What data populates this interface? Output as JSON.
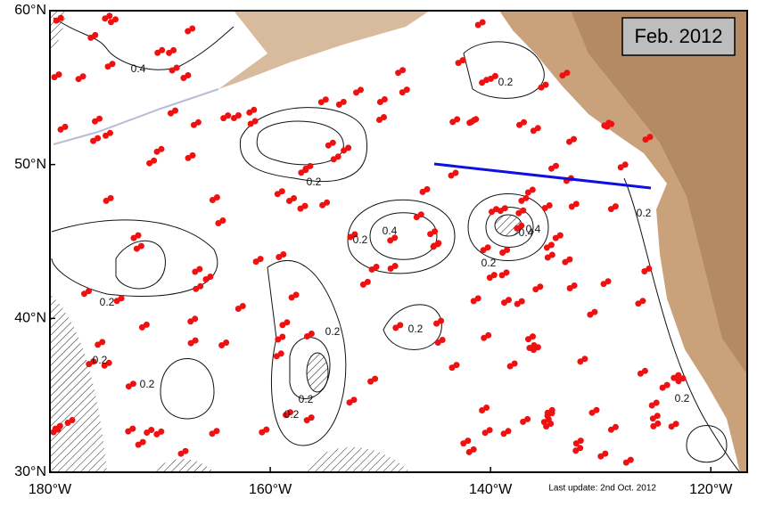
{
  "map": {
    "title": "Feb. 2012",
    "footnote": "Last update: 2nd Oct. 2012",
    "lonlim": [
      -180,
      -116.7
    ],
    "latlim": [
      30,
      60
    ],
    "lon_ticks": [
      {
        "value": -180,
        "label": "180°W"
      },
      {
        "value": -160,
        "label": "160°W"
      },
      {
        "value": -140,
        "label": "140°W"
      },
      {
        "value": -120,
        "label": "120°W"
      }
    ],
    "lat_ticks": [
      {
        "value": 30,
        "label": "30°N"
      },
      {
        "value": 40,
        "label": "40°N"
      },
      {
        "value": 50,
        "label": "50°N"
      },
      {
        "value": 60,
        "label": "60°N"
      }
    ],
    "contour_labels": [
      "0.4",
      "0.2",
      "0.2",
      "0.2",
      "0.2",
      "0.4",
      "0.2",
      "0.4",
      "0.2",
      "0.2",
      "0.2",
      "0.2",
      "0.2",
      "0.2",
      "0.4",
      "0.2",
      "0.2"
    ]
  }
}
